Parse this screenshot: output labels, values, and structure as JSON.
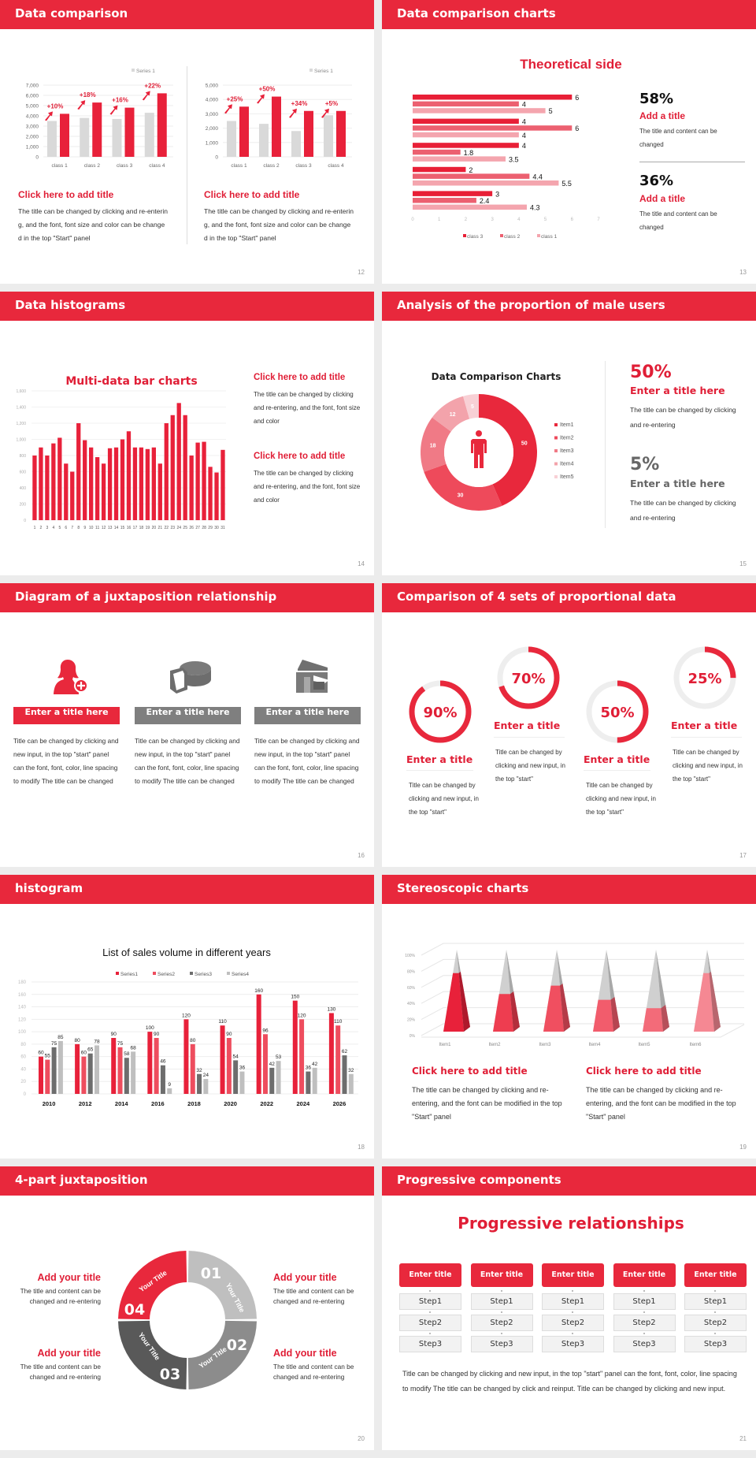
{
  "colors": {
    "brand": "#e8283c",
    "title_red": "#e01e36",
    "gray": "#d9d9d9",
    "text": "#333333"
  },
  "s12": {
    "header": "Data comparison",
    "page": "12",
    "left": {
      "title": "Click here to add title",
      "body": "The title can be changed by clicking and re-entering, and the font, font size and color can be changed in the top \"Start\" panel"
    },
    "right": {
      "title": "Click here to add title",
      "body": "The title can be changed by clicking and re-entering, and the font, font size and color can be changed in the top \"Start\" panel"
    }
  },
  "s13": {
    "header": "Data comparison charts",
    "page": "13",
    "heading": "Theoretical side",
    "stats": [
      {
        "value": "58%",
        "title": "Add a title",
        "body": "The title and content can be changed"
      },
      {
        "value": "36%",
        "title": "Add a title",
        "body": "The title and content can be changed"
      }
    ]
  },
  "s14": {
    "header": "Data histograms",
    "page": "14",
    "blocks": [
      {
        "title": "Click here to add title",
        "body": "The title can be changed by clicking and re-entering, and the font, font size and color"
      },
      {
        "title": "Click here to add title",
        "body": "The title can be changed by clicking and re-entering, and the font, font size and color"
      }
    ]
  },
  "s15": {
    "header": "Analysis of the proportion of male users",
    "page": "15",
    "stats": [
      {
        "value": "50%",
        "title": "Enter a title here",
        "body": "The title can be changed by clicking and re-entering",
        "color": "#e01e36"
      },
      {
        "value": "5%",
        "title": "Enter a title here",
        "body": "The title can be changed by clicking and re-entering",
        "color": "#666666"
      }
    ]
  },
  "s16": {
    "header": "Diagram of a juxtaposition relationship",
    "page": "16",
    "columns": [
      {
        "icon": "woman-add-user-icon",
        "title": "Enter a title here",
        "color": "#e8283c",
        "body": "Title can be changed by clicking and new input, in the top \"start\" panel can the font, font, color, line spacing to modify The title can be changed"
      },
      {
        "icon": "3d-pie-chart-icon",
        "title": "Enter a title here",
        "color": "#7f7f7f",
        "body": "Title can be changed by clicking and new input, in the top \"start\" panel can the font, font, color, line spacing to modify The title can be changed"
      },
      {
        "icon": "shop-store-icon",
        "title": "Enter a title here",
        "color": "#7f7f7f",
        "body": "Title can be changed by clicking and new input, in the top \"start\" panel can the font, font, color, line spacing to modify The title can be changed"
      }
    ]
  },
  "s17": {
    "header": "Comparison of 4 sets of proportional data",
    "page": "17",
    "rings": [
      {
        "percent": 90,
        "label": "90%",
        "title": "Enter a title",
        "body": "Title can be changed by clicking and new input, in the top \"start\""
      },
      {
        "percent": 70,
        "label": "70%",
        "title": "Enter a title",
        "body": "Title can be changed by clicking and new input, in the top \"start\""
      },
      {
        "percent": 50,
        "label": "50%",
        "title": "Enter a title",
        "body": "Title can be changed by clicking and new input, in the top \"start\""
      },
      {
        "percent": 25,
        "label": "25%",
        "title": "Enter a title",
        "body": "Title can be changed by clicking and new input, in the top \"start\""
      }
    ]
  },
  "s18": {
    "header": "histogram",
    "page": "18"
  },
  "s19": {
    "header": "Stereoscopic charts",
    "page": "19",
    "blocks": [
      {
        "title": "Click here to add title",
        "body": "The title can be changed by clicking and re-entering, and the font can be modified in the top \"Start\" panel"
      },
      {
        "title": "Click here to add title",
        "body": "The title can be changed by clicking and re-entering, and the font can be modified in the top \"Start\" panel"
      }
    ]
  },
  "s20": {
    "header": "4-part juxtaposition",
    "page": "20",
    "segments": [
      {
        "number": "01",
        "label": "Your Title",
        "color": "#bfbfbf"
      },
      {
        "number": "02",
        "label": "Your Title",
        "color": "#8c8c8c"
      },
      {
        "number": "03",
        "label": "Your Title",
        "color": "#595959"
      },
      {
        "number": "04",
        "label": "Your Title",
        "color": "#e8283c"
      }
    ],
    "sides": [
      {
        "title": "Add your title",
        "body": "The title and content can be changed and re-entering"
      },
      {
        "title": "Add your title",
        "body": "The title and content can be changed and re-entering"
      },
      {
        "title": "Add your title",
        "body": "The title and content can be changed and re-entering"
      },
      {
        "title": "Add your title",
        "body": "The title and content can be changed and re-entering"
      }
    ]
  },
  "s21": {
    "header": "Progressive components",
    "page": "21",
    "heading": "Progressive relationships",
    "columns": [
      {
        "title": "Enter title",
        "steps": [
          "Step1",
          "Step2",
          "Step3"
        ]
      },
      {
        "title": "Enter title",
        "steps": [
          "Step1",
          "Step2",
          "Step3"
        ]
      },
      {
        "title": "Enter title",
        "steps": [
          "Step1",
          "Step2",
          "Step3"
        ]
      },
      {
        "title": "Enter title",
        "steps": [
          "Step1",
          "Step2",
          "Step3"
        ]
      },
      {
        "title": "Enter title",
        "steps": [
          "Step1",
          "Step2",
          "Step3"
        ]
      }
    ],
    "body": "Title can be changed by clicking and new input, in the top \"start\" panel can the font, font, color, line spacing to modify The title can be changed by click and reinput. Title can be changed by clicking and new input."
  },
  "chart_data": [
    {
      "type": "bar",
      "categories": [
        "class 1",
        "class 2",
        "class 3",
        "class 4"
      ],
      "series": [
        {
          "name": "Series 1",
          "values": [
            3500,
            3800,
            3700,
            4300
          ],
          "color": "#d9d9d9"
        },
        {
          "values": [
            4200,
            5300,
            4800,
            6200
          ],
          "color": "#e8213a"
        }
      ],
      "annotations": [
        "+10%",
        "+18%",
        "+16%",
        "+22%"
      ],
      "legend": [
        "Series 1"
      ],
      "legend_position": "top-right",
      "ylim": [
        0,
        7000
      ],
      "yticks": [
        0,
        1000,
        2000,
        3000,
        4000,
        5000,
        6000,
        7000
      ],
      "ytick_labels": [
        "0",
        "1,000",
        "2,000",
        "3,000",
        "4,000",
        "5,000",
        "6,000",
        "7,000"
      ],
      "grid": true
    },
    {
      "type": "bar",
      "categories": [
        "class 1",
        "class 2",
        "class 3",
        "class 4"
      ],
      "series": [
        {
          "name": "Series 1",
          "values": [
            2500,
            2300,
            1800,
            2900
          ],
          "color": "#d9d9d9"
        },
        {
          "values": [
            3500,
            4200,
            3200,
            3200
          ],
          "color": "#e8213a"
        }
      ],
      "annotations": [
        "+25%",
        "+50%",
        "+34%",
        "+5%"
      ],
      "legend": [
        "Series 1"
      ],
      "legend_position": "top-right",
      "ylim": [
        0,
        5000
      ],
      "yticks": [
        0,
        1000,
        2000,
        3000,
        4000,
        5000
      ],
      "ytick_labels": [
        "0",
        "1,000",
        "2,000",
        "3,000",
        "4,000",
        "5,000"
      ],
      "grid": true
    },
    {
      "type": "bar",
      "orientation": "horizontal",
      "title": "Theoretical side",
      "series": [
        {
          "name": "class 3",
          "values": [
            6,
            4,
            4,
            2,
            3
          ],
          "color": "#e81f36"
        },
        {
          "name": "class 2",
          "values": [
            4,
            6,
            1.8,
            4.4,
            2.4
          ],
          "color": "#ec6070"
        },
        {
          "name": "class 1",
          "values": [
            5,
            4,
            3.5,
            5.5,
            4.3
          ],
          "color": "#f4a5ae"
        }
      ],
      "xlim": [
        0,
        7
      ],
      "xticks": [
        0,
        1,
        2,
        3,
        4,
        5,
        6,
        7
      ],
      "legend_position": "bottom",
      "data_labels": true
    },
    {
      "type": "bar",
      "title": "Multi-data bar charts",
      "categories": [
        "1",
        "2",
        "3",
        "4",
        "5",
        "6",
        "7",
        "8",
        "9",
        "10",
        "11",
        "12",
        "13",
        "14",
        "15",
        "16",
        "17",
        "18",
        "19",
        "20",
        "21",
        "22",
        "23",
        "24",
        "25",
        "26",
        "27",
        "28",
        "29",
        "30",
        "31"
      ],
      "values": [
        800,
        900,
        800,
        950,
        1020,
        700,
        600,
        1200,
        990,
        900,
        780,
        700,
        890,
        900,
        1000,
        1100,
        900,
        900,
        880,
        900,
        700,
        1200,
        1300,
        1450,
        1300,
        800,
        960,
        970,
        660,
        590,
        870
      ],
      "ylim": [
        0,
        1600
      ],
      "yticks": [
        0,
        200,
        400,
        600,
        800,
        1000,
        1200,
        1400,
        1600
      ],
      "ytick_labels": [
        "0",
        "200",
        "400",
        "600",
        "800",
        "1,000",
        "1,200",
        "1,400",
        "1,600"
      ],
      "color": "#e8213a",
      "grid": true
    },
    {
      "type": "pie",
      "donut": true,
      "title": "Data Comparison Charts",
      "labels": [
        "Item1",
        "Item2",
        "Item3",
        "Item4",
        "Item5"
      ],
      "values": [
        50,
        30,
        18,
        12,
        5
      ],
      "colors": [
        "#e8283c",
        "#ee4a5b",
        "#f07a86",
        "#f3a3ab",
        "#f8d0d5"
      ],
      "legend_position": "right",
      "center_icon": "male-person-icon"
    },
    {
      "type": "bar",
      "title": "List of sales volume in different years",
      "categories": [
        "2010",
        "2012",
        "2014",
        "2016",
        "2018",
        "2020",
        "2022",
        "2024",
        "2026"
      ],
      "series": [
        {
          "name": "Series1",
          "values": [
            60,
            80,
            90,
            100,
            120,
            110,
            160,
            150,
            130
          ],
          "color": "#e8213a"
        },
        {
          "name": "Series2",
          "values": [
            55,
            60,
            75,
            90,
            80,
            90,
            96,
            120,
            110
          ],
          "color": "#ee4d5e"
        },
        {
          "name": "Series3",
          "values": [
            75,
            65,
            58,
            46,
            32,
            54,
            42,
            36,
            62
          ],
          "color": "#6d6d6d"
        },
        {
          "name": "Series4",
          "values": [
            85,
            78,
            68,
            9,
            24,
            36,
            53,
            42,
            32
          ],
          "color": "#bfbfbf"
        }
      ],
      "ylim": [
        0,
        180
      ],
      "yticks": [
        0,
        20,
        40,
        60,
        80,
        100,
        120,
        140,
        160,
        180
      ],
      "legend_position": "top",
      "data_labels": true,
      "grid": true
    },
    {
      "type": "bar",
      "style": "3d-pyramid",
      "categories": [
        "Item1",
        "Item2",
        "Item3",
        "Item4",
        "Item5",
        "Item6"
      ],
      "values": [
        0.7,
        0.45,
        0.55,
        0.38,
        0.28,
        0.7
      ],
      "colors": [
        "#e8213a",
        "#ee3d50",
        "#f04f60",
        "#f25c6c",
        "#f36b79",
        "#f58893"
      ],
      "ylim": [
        0,
        1
      ],
      "yticks": [
        0,
        0.2,
        0.4,
        0.6,
        0.8,
        1
      ],
      "ytick_labels": [
        "0%",
        "20%",
        "40%",
        "60%",
        "80%",
        "100%"
      ],
      "grid": true
    }
  ]
}
